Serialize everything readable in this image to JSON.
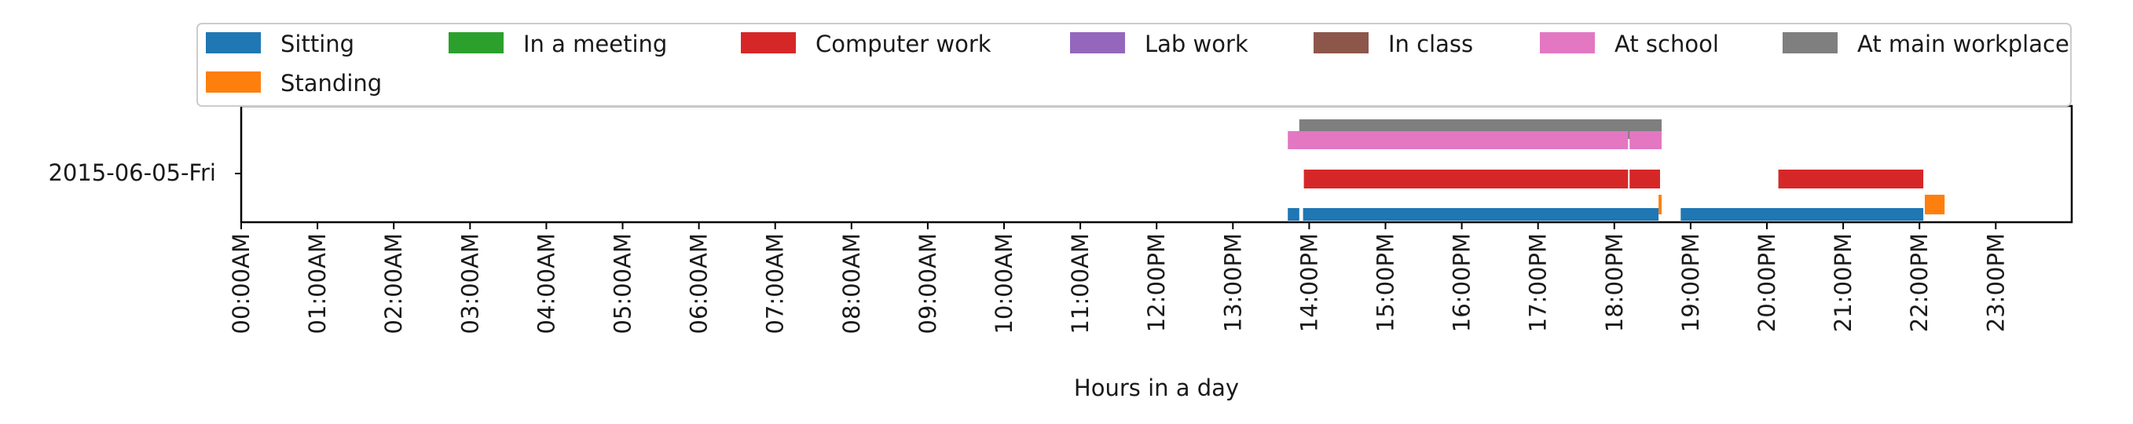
{
  "chart_data": {
    "type": "timeline",
    "title": "",
    "xlabel": "Hours in a day",
    "ylabel": "",
    "xlim": [
      0,
      24
    ],
    "x_ticks": [
      {
        "hour": 0,
        "label": "00:00AM"
      },
      {
        "hour": 1,
        "label": "01:00AM"
      },
      {
        "hour": 2,
        "label": "02:00AM"
      },
      {
        "hour": 3,
        "label": "03:00AM"
      },
      {
        "hour": 4,
        "label": "04:00AM"
      },
      {
        "hour": 5,
        "label": "05:00AM"
      },
      {
        "hour": 6,
        "label": "06:00AM"
      },
      {
        "hour": 7,
        "label": "07:00AM"
      },
      {
        "hour": 8,
        "label": "08:00AM"
      },
      {
        "hour": 9,
        "label": "09:00AM"
      },
      {
        "hour": 10,
        "label": "10:00AM"
      },
      {
        "hour": 11,
        "label": "11:00AM"
      },
      {
        "hour": 12,
        "label": "12:00PM"
      },
      {
        "hour": 13,
        "label": "13:00PM"
      },
      {
        "hour": 14,
        "label": "14:00PM"
      },
      {
        "hour": 15,
        "label": "15:00PM"
      },
      {
        "hour": 16,
        "label": "16:00PM"
      },
      {
        "hour": 17,
        "label": "17:00PM"
      },
      {
        "hour": 18,
        "label": "18:00PM"
      },
      {
        "hour": 19,
        "label": "19:00PM"
      },
      {
        "hour": 20,
        "label": "20:00PM"
      },
      {
        "hour": 21,
        "label": "21:00PM"
      },
      {
        "hour": 22,
        "label": "22:00PM"
      },
      {
        "hour": 23,
        "label": "23:00PM"
      }
    ],
    "day_label": "2015-06-05-Fri",
    "legend_position": "top",
    "legend": [
      {
        "key": "sitting",
        "label": "Sitting",
        "color": "#1f77b4"
      },
      {
        "key": "in_meeting",
        "label": "In a meeting",
        "color": "#2ca02c"
      },
      {
        "key": "computer_work",
        "label": "Computer work",
        "color": "#d62728"
      },
      {
        "key": "lab_work",
        "label": "Lab work",
        "color": "#9467bd"
      },
      {
        "key": "in_class",
        "label": "In class",
        "color": "#8c564b"
      },
      {
        "key": "at_school",
        "label": "At school",
        "color": "#e377c2"
      },
      {
        "key": "at_main_workplace",
        "label": "At main workplace",
        "color": "#7f7f7f"
      },
      {
        "key": "standing",
        "label": "Standing",
        "color": "#ff7f0e"
      }
    ],
    "series": [
      {
        "key": "at_main_workplace",
        "intervals": [
          [
            13.87,
            18.62
          ]
        ]
      },
      {
        "key": "at_school",
        "intervals": [
          [
            13.72,
            18.18
          ],
          [
            18.2,
            18.62
          ]
        ]
      },
      {
        "key": "computer_work",
        "intervals": [
          [
            13.93,
            18.18
          ],
          [
            18.2,
            18.6
          ],
          [
            20.15,
            22.05
          ]
        ]
      },
      {
        "key": "standing",
        "intervals": [
          [
            18.58,
            18.62
          ],
          [
            22.07,
            22.33
          ]
        ]
      },
      {
        "key": "sitting",
        "intervals": [
          [
            13.72,
            13.87
          ],
          [
            13.92,
            18.58
          ],
          [
            18.87,
            22.05
          ]
        ]
      }
    ]
  }
}
